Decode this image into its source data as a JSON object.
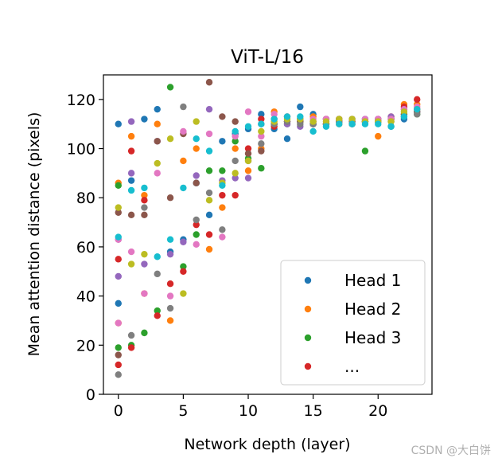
{
  "watermark": "CSDN @大白饼",
  "chart_data": {
    "type": "scatter",
    "title": "ViT-L/16",
    "xlabel": "Network depth (layer)",
    "ylabel": "Mean attention distance (pixels)",
    "xlim": [
      -1.15,
      24.15
    ],
    "ylim": [
      0,
      130
    ],
    "xticks": [
      0,
      5,
      10,
      15,
      20
    ],
    "yticks": [
      0,
      20,
      40,
      60,
      80,
      100,
      120
    ],
    "grid": false,
    "legend": {
      "position": "bottom-right",
      "entries": [
        {
          "label": "Head 1",
          "color": "#1f77b4"
        },
        {
          "label": "Head 2",
          "color": "#ff7f0e"
        },
        {
          "label": "Head 3",
          "color": "#2ca02c"
        },
        {
          "label": "...",
          "color": "#d62728"
        }
      ]
    },
    "colors": [
      "#1f77b4",
      "#ff7f0e",
      "#2ca02c",
      "#d62728",
      "#9467bd",
      "#8c564b",
      "#e377c2",
      "#7f7f7f",
      "#bcbd22",
      "#17becf"
    ],
    "series": [
      {
        "color_index": 0,
        "points": [
          [
            0,
            110
          ],
          [
            0,
            37
          ],
          [
            1,
            87
          ],
          [
            2,
            112
          ],
          [
            3,
            116
          ],
          [
            4,
            58
          ],
          [
            5,
            63
          ],
          [
            6,
            86
          ],
          [
            7,
            73
          ],
          [
            8,
            103
          ],
          [
            9,
            106
          ],
          [
            10,
            108
          ],
          [
            11,
            114
          ],
          [
            12,
            108
          ],
          [
            13,
            104
          ],
          [
            14,
            117
          ],
          [
            15,
            114
          ],
          [
            16,
            112
          ],
          [
            17,
            112
          ],
          [
            18,
            112
          ],
          [
            19,
            112
          ],
          [
            20,
            111
          ],
          [
            21,
            109
          ],
          [
            22,
            112
          ],
          [
            23,
            115
          ]
        ]
      },
      {
        "color_index": 1,
        "points": [
          [
            0,
            86
          ],
          [
            0,
            29
          ],
          [
            1,
            105
          ],
          [
            2,
            81
          ],
          [
            2,
            41
          ],
          [
            3,
            110
          ],
          [
            4,
            30
          ],
          [
            5,
            95
          ],
          [
            6,
            100
          ],
          [
            7,
            59
          ],
          [
            8,
            76
          ],
          [
            9,
            100
          ],
          [
            10,
            91
          ],
          [
            11,
            100
          ],
          [
            12,
            115
          ],
          [
            13,
            113
          ],
          [
            14,
            112
          ],
          [
            15,
            113
          ],
          [
            16,
            110
          ],
          [
            17,
            110
          ],
          [
            18,
            110
          ],
          [
            19,
            111
          ],
          [
            20,
            105
          ],
          [
            21,
            113
          ],
          [
            22,
            118
          ],
          [
            23,
            118
          ]
        ]
      },
      {
        "color_index": 2,
        "points": [
          [
            0,
            85
          ],
          [
            0,
            19
          ],
          [
            1,
            20
          ],
          [
            2,
            25
          ],
          [
            3,
            34
          ],
          [
            4,
            125
          ],
          [
            5,
            52
          ],
          [
            6,
            65
          ],
          [
            7,
            91
          ],
          [
            8,
            91
          ],
          [
            9,
            103
          ],
          [
            10,
            96
          ],
          [
            11,
            92
          ],
          [
            12,
            110
          ],
          [
            13,
            110
          ],
          [
            14,
            111
          ],
          [
            15,
            110
          ],
          [
            16,
            110
          ],
          [
            17,
            111
          ],
          [
            18,
            110
          ],
          [
            19,
            99
          ],
          [
            20,
            111
          ],
          [
            21,
            112
          ],
          [
            22,
            114
          ],
          [
            23,
            114
          ]
        ]
      },
      {
        "color_index": 3,
        "points": [
          [
            0,
            55
          ],
          [
            0,
            12
          ],
          [
            1,
            99
          ],
          [
            1,
            19
          ],
          [
            2,
            79
          ],
          [
            3,
            32
          ],
          [
            4,
            45
          ],
          [
            5,
            50
          ],
          [
            6,
            69
          ],
          [
            7,
            65
          ],
          [
            8,
            81
          ],
          [
            9,
            81
          ],
          [
            10,
            100
          ],
          [
            11,
            112
          ],
          [
            12,
            109
          ],
          [
            13,
            111
          ],
          [
            14,
            112
          ],
          [
            15,
            111
          ],
          [
            16,
            112
          ],
          [
            17,
            112
          ],
          [
            18,
            111
          ],
          [
            19,
            111
          ],
          [
            20,
            112
          ],
          [
            21,
            112
          ],
          [
            22,
            117
          ],
          [
            23,
            120
          ]
        ]
      },
      {
        "color_index": 4,
        "points": [
          [
            0,
            63
          ],
          [
            0,
            48
          ],
          [
            1,
            111
          ],
          [
            1,
            90
          ],
          [
            2,
            53
          ],
          [
            3,
            103
          ],
          [
            4,
            57
          ],
          [
            5,
            62
          ],
          [
            6,
            89
          ],
          [
            7,
            116
          ],
          [
            8,
            87
          ],
          [
            9,
            88
          ],
          [
            10,
            88
          ],
          [
            11,
            110
          ],
          [
            12,
            112
          ],
          [
            13,
            110
          ],
          [
            14,
            109
          ],
          [
            15,
            110
          ],
          [
            16,
            110
          ],
          [
            17,
            111
          ],
          [
            18,
            110
          ],
          [
            19,
            111
          ],
          [
            20,
            112
          ],
          [
            21,
            113
          ],
          [
            22,
            116
          ],
          [
            23,
            116
          ]
        ]
      },
      {
        "color_index": 5,
        "points": [
          [
            0,
            74
          ],
          [
            0,
            16
          ],
          [
            1,
            73
          ],
          [
            2,
            73
          ],
          [
            3,
            103
          ],
          [
            4,
            80
          ],
          [
            5,
            106
          ],
          [
            6,
            86
          ],
          [
            7,
            127
          ],
          [
            8,
            113
          ],
          [
            9,
            111
          ],
          [
            10,
            98
          ],
          [
            11,
            99
          ],
          [
            12,
            110
          ],
          [
            13,
            111
          ],
          [
            14,
            111
          ],
          [
            15,
            110
          ],
          [
            16,
            110
          ],
          [
            17,
            111
          ],
          [
            18,
            111
          ],
          [
            19,
            111
          ],
          [
            20,
            111
          ],
          [
            21,
            112
          ],
          [
            22,
            114
          ],
          [
            23,
            115
          ]
        ]
      },
      {
        "color_index": 6,
        "points": [
          [
            0,
            63
          ],
          [
            0,
            29
          ],
          [
            1,
            58
          ],
          [
            2,
            41
          ],
          [
            3,
            90
          ],
          [
            4,
            40
          ],
          [
            5,
            107
          ],
          [
            6,
            61
          ],
          [
            7,
            106
          ],
          [
            8,
            64
          ],
          [
            9,
            105
          ],
          [
            10,
            115
          ],
          [
            11,
            105
          ],
          [
            12,
            114
          ],
          [
            13,
            113
          ],
          [
            14,
            112
          ],
          [
            15,
            112
          ],
          [
            16,
            112
          ],
          [
            17,
            112
          ],
          [
            18,
            112
          ],
          [
            19,
            112
          ],
          [
            20,
            112
          ],
          [
            21,
            112
          ],
          [
            22,
            116
          ],
          [
            23,
            117
          ]
        ]
      },
      {
        "color_index": 7,
        "points": [
          [
            0,
            8
          ],
          [
            1,
            24
          ],
          [
            2,
            76
          ],
          [
            3,
            49
          ],
          [
            4,
            35
          ],
          [
            5,
            117
          ],
          [
            6,
            71
          ],
          [
            7,
            82
          ],
          [
            8,
            67
          ],
          [
            9,
            95
          ],
          [
            10,
            95
          ],
          [
            11,
            102
          ],
          [
            12,
            110
          ],
          [
            13,
            111
          ],
          [
            14,
            110
          ],
          [
            15,
            110
          ],
          [
            16,
            110
          ],
          [
            17,
            111
          ],
          [
            18,
            111
          ],
          [
            19,
            111
          ],
          [
            20,
            111
          ],
          [
            21,
            111
          ],
          [
            22,
            113
          ],
          [
            23,
            114
          ]
        ]
      },
      {
        "color_index": 8,
        "points": [
          [
            0,
            76
          ],
          [
            1,
            53
          ],
          [
            2,
            57
          ],
          [
            3,
            94
          ],
          [
            4,
            104
          ],
          [
            5,
            41
          ],
          [
            6,
            111
          ],
          [
            7,
            79
          ],
          [
            8,
            86
          ],
          [
            9,
            90
          ],
          [
            10,
            95
          ],
          [
            11,
            107
          ],
          [
            12,
            111
          ],
          [
            13,
            112
          ],
          [
            14,
            112
          ],
          [
            15,
            111
          ],
          [
            16,
            111
          ],
          [
            17,
            112
          ],
          [
            18,
            112
          ],
          [
            19,
            111
          ],
          [
            20,
            111
          ],
          [
            21,
            111
          ],
          [
            22,
            115
          ],
          [
            23,
            116
          ]
        ]
      },
      {
        "color_index": 9,
        "points": [
          [
            0,
            64
          ],
          [
            1,
            83
          ],
          [
            2,
            84
          ],
          [
            3,
            56
          ],
          [
            4,
            63
          ],
          [
            5,
            84
          ],
          [
            6,
            104
          ],
          [
            7,
            99
          ],
          [
            8,
            85
          ],
          [
            9,
            107
          ],
          [
            10,
            109
          ],
          [
            11,
            110
          ],
          [
            12,
            112
          ],
          [
            13,
            113
          ],
          [
            14,
            113
          ],
          [
            15,
            107
          ],
          [
            16,
            109
          ],
          [
            17,
            110
          ],
          [
            18,
            110
          ],
          [
            19,
            110
          ],
          [
            20,
            110
          ],
          [
            21,
            109
          ],
          [
            22,
            113
          ],
          [
            23,
            116
          ]
        ]
      }
    ]
  }
}
